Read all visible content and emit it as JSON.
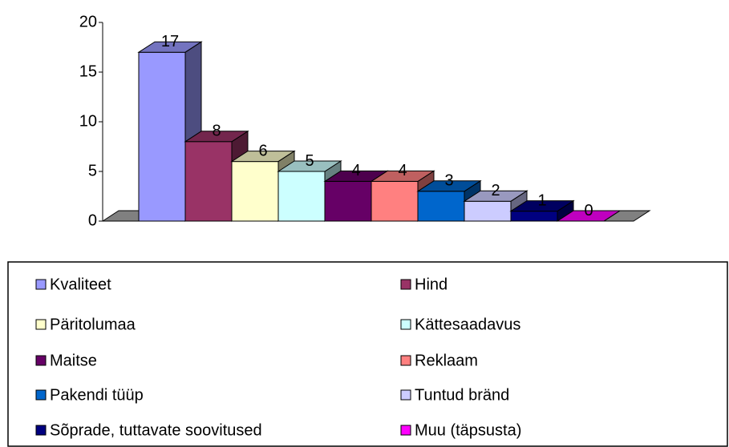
{
  "chart_data": {
    "type": "bar",
    "series": [
      {
        "name": "Kvaliteet",
        "color": "#9999ff",
        "values": [
          17
        ]
      },
      {
        "name": "Hind",
        "color": "#993366",
        "values": [
          8
        ]
      },
      {
        "name": "Päritolumaa",
        "color": "#ffffcc",
        "values": [
          6
        ]
      },
      {
        "name": "Kättesaadavus",
        "color": "#ccffff",
        "values": [
          5
        ]
      },
      {
        "name": "Maitse",
        "color": "#660066",
        "values": [
          4
        ]
      },
      {
        "name": "Reklaam",
        "color": "#ff8080",
        "values": [
          4
        ]
      },
      {
        "name": "Pakendi tüüp",
        "color": "#0066cc",
        "values": [
          3
        ]
      },
      {
        "name": "Tuntud bränd",
        "color": "#ccccff",
        "values": [
          2
        ]
      },
      {
        "name": "Sõprade, tuttavate soovitused",
        "color": "#000080",
        "values": [
          1
        ]
      },
      {
        "name": "Muu (täpsusta)",
        "color": "#ff00ff",
        "values": [
          0
        ]
      }
    ],
    "ylim": [
      0,
      20
    ],
    "yticks": [
      0,
      5,
      10,
      15,
      20
    ]
  }
}
